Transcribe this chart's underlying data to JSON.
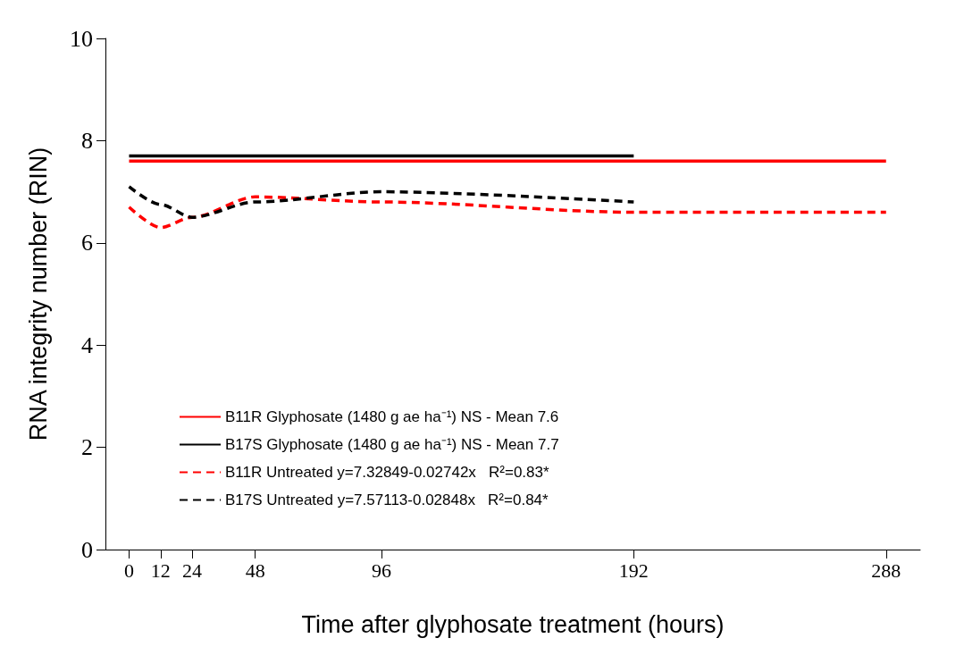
{
  "chart_data": {
    "type": "line",
    "xlabel": "Time after glyphosate treatment (hours)",
    "ylabel": "RNA integrity number (RIN)",
    "xlim": [
      -9,
      301
    ],
    "xticks": [
      0,
      12,
      24,
      48,
      96,
      192,
      288
    ],
    "ylim": [
      0,
      10
    ],
    "yticks": [
      0,
      2,
      4,
      6,
      8,
      10
    ],
    "grid": false,
    "legend": "bottom left",
    "marker": "none",
    "series": [
      {
        "name": "B11R Glyphosate (1480 g ae ha⁻¹) NS - Mean 7.6",
        "color": "#ff0000",
        "line_style": "solid",
        "x": [
          0,
          288
        ],
        "values": [
          7.6,
          7.6
        ]
      },
      {
        "name": "B17S Glyphosate (1480 g ae ha⁻¹) NS - Mean 7.7",
        "color": "#000000",
        "line_style": "solid",
        "x": [
          0,
          192
        ],
        "values": [
          7.7,
          7.7
        ]
      },
      {
        "name": "B11R Untreated y=7.32849-0.02742x   R²=0.83*",
        "color": "#ff0000",
        "line_style": "dashed",
        "x": [
          0,
          12,
          24,
          48,
          96,
          192,
          288
        ],
        "values": [
          6.7,
          6.3,
          6.5,
          6.9,
          6.8,
          6.6,
          6.6
        ]
      },
      {
        "name": "B17S Untreated y=7.57113-0.02848x   R²=0.84*",
        "color": "#000000",
        "line_style": "dashed",
        "x": [
          0,
          12,
          24,
          48,
          96,
          192
        ],
        "values": [
          7.1,
          6.75,
          6.5,
          6.8,
          7.0,
          6.8
        ]
      }
    ]
  }
}
